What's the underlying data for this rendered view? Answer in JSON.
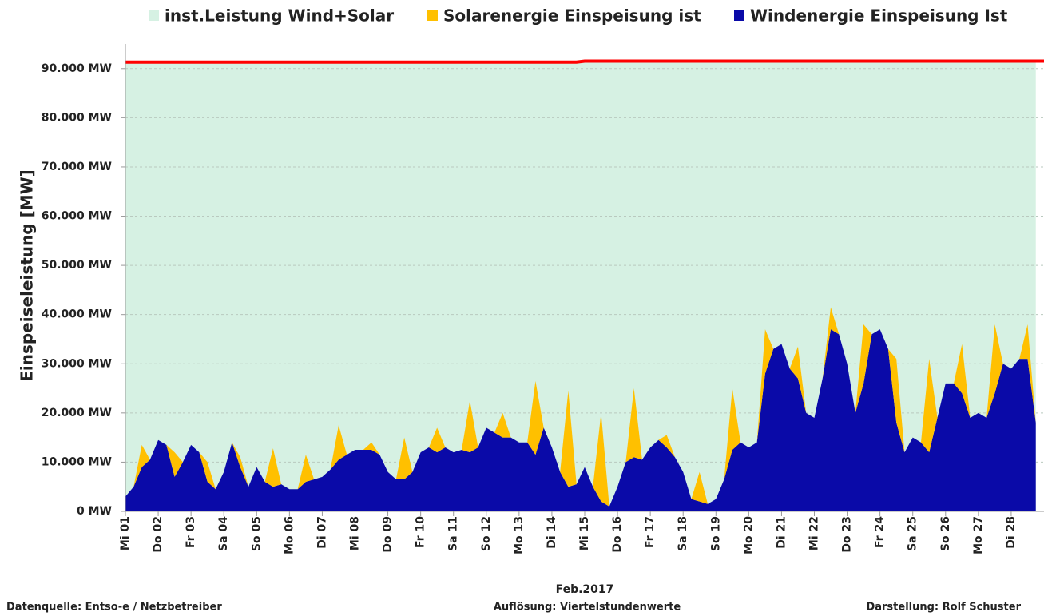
{
  "chart_data": {
    "type": "area",
    "stacked": true,
    "categories": [
      "Mi 01",
      null,
      null,
      null,
      "Do 02",
      null,
      null,
      null,
      "Fr 03",
      null,
      null,
      null,
      "Sa 04",
      null,
      null,
      null,
      "So 05",
      null,
      null,
      null,
      "Mo 06",
      null,
      null,
      null,
      "Di 07",
      null,
      null,
      null,
      "Mi 08",
      null,
      null,
      null,
      "Do 09",
      null,
      null,
      null,
      "Fr 10",
      null,
      null,
      null,
      "Sa 11",
      null,
      null,
      null,
      "So 12",
      null,
      null,
      null,
      "Mo 13",
      null,
      null,
      null,
      "Di 14",
      null,
      null,
      null,
      "Mi 15",
      null,
      null,
      null,
      "Do 16",
      null,
      null,
      null,
      "Fr 17",
      null,
      null,
      null,
      "Sa 18",
      null,
      null,
      null,
      "So 19",
      null,
      null,
      null,
      "Mo 20",
      null,
      null,
      null,
      "Di 21",
      null,
      null,
      null,
      "Mi 22",
      null,
      null,
      null,
      "Do 23",
      null,
      null,
      null,
      "Fr 24",
      null,
      null,
      null,
      "Sa 25",
      null,
      null,
      null,
      "So 26",
      null,
      null,
      null,
      "Mo 27",
      null,
      null,
      null,
      "Di 28",
      null,
      null,
      null
    ],
    "series": [
      {
        "name": "inst.Leistung Wind+Solar",
        "color": "#d6f1e3",
        "line_color": "#ff0000",
        "values": [
          91300,
          91300,
          91300,
          91300,
          91300,
          91300,
          91300,
          91300,
          91300,
          91300,
          91300,
          91300,
          91300,
          91300,
          91300,
          91300,
          91300,
          91300,
          91300,
          91300,
          91300,
          91300,
          91300,
          91300,
          91300,
          91300,
          91300,
          91300,
          91300,
          91300,
          91300,
          91300,
          91300,
          91300,
          91300,
          91300,
          91300,
          91300,
          91300,
          91300,
          91300,
          91300,
          91300,
          91300,
          91300,
          91300,
          91300,
          91300,
          91300,
          91300,
          91300,
          91300,
          91300,
          91300,
          91300,
          91300,
          91500,
          91500,
          91500,
          91500,
          91500,
          91500,
          91500,
          91500,
          91500,
          91500,
          91500,
          91500,
          91500,
          91500,
          91500,
          91500,
          91500,
          91500,
          91500,
          91500,
          91500,
          91500,
          91500,
          91500,
          91500,
          91500,
          91500,
          91500,
          91500,
          91500,
          91500,
          91500,
          91500,
          91500,
          91500,
          91500,
          91500,
          91500,
          91500,
          91500,
          91500,
          91500,
          91500,
          91500,
          91500,
          91500,
          91500,
          91500,
          91500,
          91500,
          91500,
          91500,
          91500,
          91500,
          91500,
          91500
        ]
      },
      {
        "name": "Solarenergie Einspeisung ist",
        "color": "#ffc000",
        "stack": "energy",
        "values": [
          0,
          0,
          4500,
          0,
          0,
          0,
          5000,
          0,
          0,
          0,
          4000,
          0,
          0,
          0,
          2000,
          0,
          0,
          0,
          7800,
          0,
          0,
          0,
          5500,
          0,
          0,
          0,
          7000,
          0,
          0,
          0,
          1500,
          0,
          0,
          0,
          8500,
          0,
          0,
          0,
          5000,
          0,
          0,
          0,
          10500,
          0,
          0,
          0,
          5000,
          0,
          0,
          0,
          15000,
          0,
          0,
          0,
          19500,
          0,
          0,
          0,
          18000,
          0,
          0,
          0,
          14000,
          0,
          0,
          0,
          2500,
          0,
          0,
          0,
          6000,
          0,
          0,
          0,
          12500,
          0,
          0,
          0,
          9000,
          0,
          0,
          0,
          6500,
          0,
          0,
          0,
          4500,
          0,
          0,
          0,
          12000,
          0,
          0,
          0,
          13000,
          0,
          0,
          0,
          19000,
          0,
          0,
          0,
          10000,
          0,
          0,
          0,
          14000,
          0,
          0,
          0,
          7000,
          0
        ]
      },
      {
        "name": "Windenergie Einspeisung Ist",
        "color": "#0a0aa8",
        "stack": "energy",
        "values": [
          3000,
          5000,
          9000,
          10500,
          14500,
          13500,
          7000,
          10000,
          13500,
          12000,
          6000,
          4500,
          8000,
          14000,
          9000,
          5000,
          9000,
          6000,
          5000,
          5500,
          4500,
          4500,
          6000,
          6500,
          7000,
          8500,
          10500,
          11500,
          12500,
          12500,
          12500,
          11500,
          8000,
          6500,
          6500,
          8000,
          12000,
          13000,
          12000,
          13000,
          12000,
          12500,
          12000,
          13000,
          17000,
          16000,
          15000,
          15000,
          14000,
          14000,
          11500,
          17000,
          13000,
          8000,
          5000,
          5500,
          9000,
          5000,
          2000,
          1000,
          5000,
          10000,
          11000,
          10500,
          13000,
          14500,
          13000,
          11000,
          8000,
          2500,
          2000,
          1500,
          2500,
          6500,
          12500,
          14000,
          13000,
          14000,
          28000,
          33000,
          34000,
          29000,
          27000,
          20000,
          19000,
          27000,
          37000,
          36000,
          30000,
          20000,
          26000,
          36000,
          37000,
          33000,
          18000,
          12000,
          15000,
          14000,
          12000,
          19000,
          26000,
          26000,
          24000,
          19000,
          20000,
          19000,
          24000,
          30000,
          29000,
          31000,
          31000,
          18000
        ]
      }
    ],
    "ylim": [
      0,
      95000
    ],
    "yticks": [
      {
        "value": 0,
        "label": "0 MW"
      },
      {
        "value": 10000,
        "label": "10.000 MW"
      },
      {
        "value": 20000,
        "label": "20.000 MW"
      },
      {
        "value": 30000,
        "label": "30.000 MW"
      },
      {
        "value": 40000,
        "label": "40.000 MW"
      },
      {
        "value": 50000,
        "label": "50.000 MW"
      },
      {
        "value": 60000,
        "label": "60.000 MW"
      },
      {
        "value": 70000,
        "label": "70.000 MW"
      },
      {
        "value": 80000,
        "label": "80.000 MW"
      },
      {
        "value": 90000,
        "label": "90.000 MW"
      }
    ],
    "grid": true,
    "y_label": "Einspeiseleistung  [MW]",
    "x_label": "Feb.2017",
    "legend": "top",
    "annotations": [
      "Datenquelle:  Entso-e  / Netzbetreiber",
      "Auflösung: Viertelstundenwerte",
      "Darstellung: Rolf Schuster"
    ]
  }
}
